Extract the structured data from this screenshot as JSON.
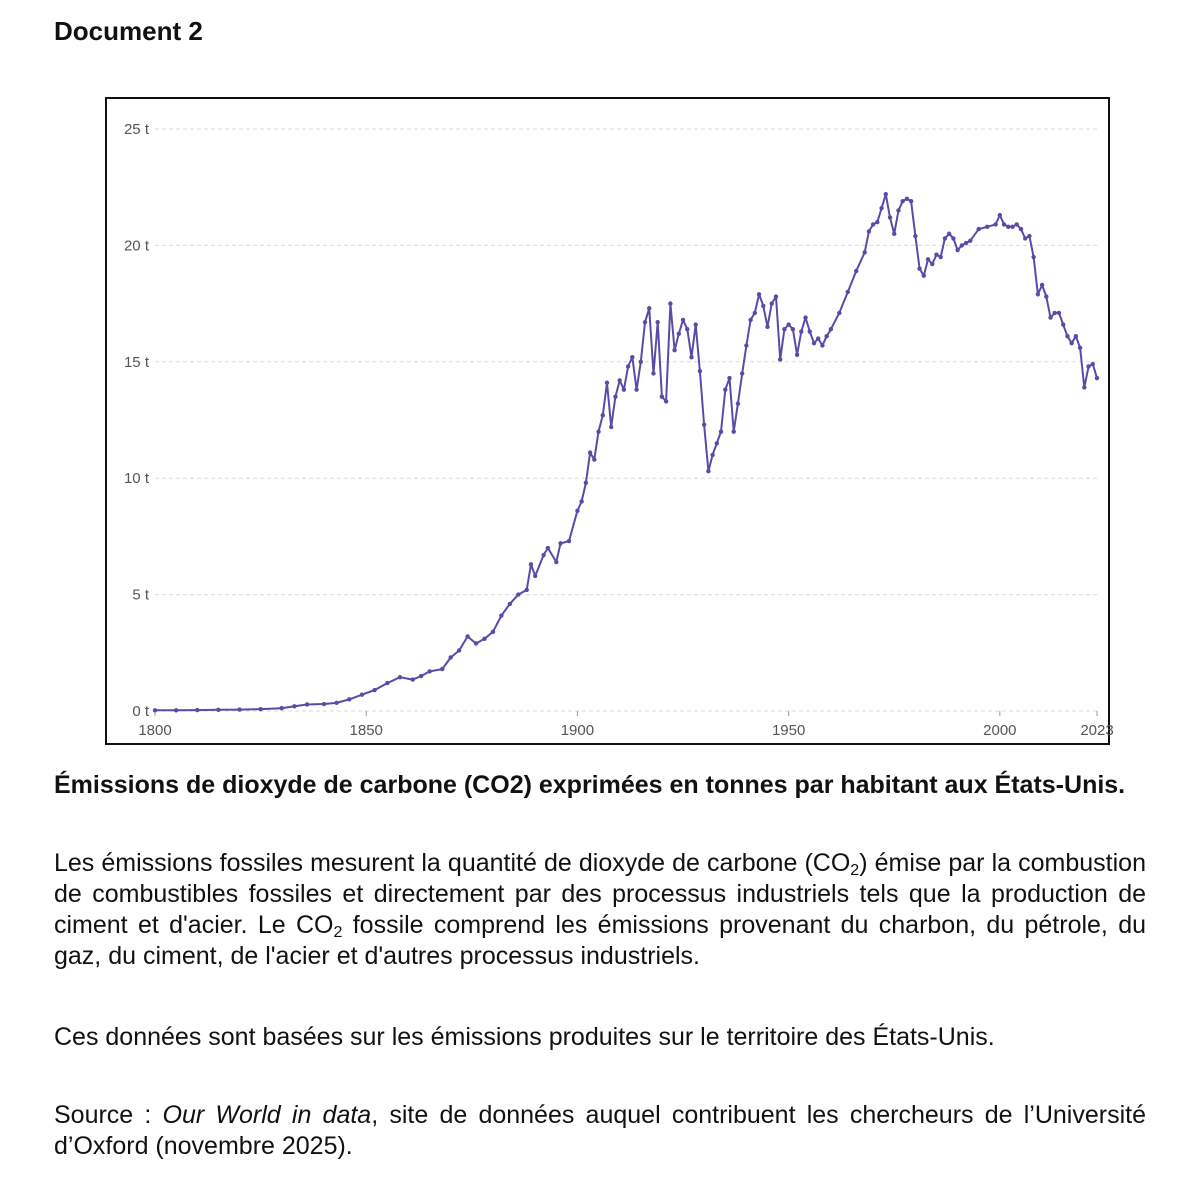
{
  "document": {
    "title": "Document 2"
  },
  "caption": {
    "text_before": "Émissions de dioxyde de carbone (CO",
    "subscript": "2",
    "text_after": ") exprimées en tonnes par habitant aux États-Unis."
  },
  "description": {
    "p1_part1": "Les émissions fossiles mesurent la quantité de dioxyde de carbone (CO",
    "p1_sub1": "2",
    "p1_part2": ") émise par la combustion de combustibles fossiles et directement par des processus industriels tels que la production de ciment et d'acier. Le CO",
    "p1_sub2": "2",
    "p1_part3": " fossile comprend les émissions provenant du charbon, du pétrole, du gaz, du ciment, de l'acier et d'autres processus industriels.",
    "p2": "Ces données sont basées sur les émissions produites sur le territoire des États-Unis."
  },
  "source": {
    "prefix": "Source : ",
    "name": "Our World in data",
    "suffix": ", site de données auquel contribuent les chercheurs de l’Université d’Oxford (novembre 2025)."
  },
  "colors": {
    "series": "#5b4aa8",
    "grid": "#d9d9d9",
    "axis_text": "#555555"
  },
  "chart_data": {
    "type": "line",
    "title": "",
    "xlabel": "",
    "ylabel": "",
    "xlim": [
      1800,
      2023
    ],
    "ylim": [
      0,
      25
    ],
    "xticks": [
      1800,
      1850,
      1900,
      1950,
      2000,
      2023
    ],
    "xtick_labels": [
      "1800",
      "1850",
      "1900",
      "1950",
      "2000",
      "2023"
    ],
    "yticks": [
      0,
      5,
      10,
      15,
      20,
      25
    ],
    "ytick_labels": [
      "0 t",
      "5 t",
      "10 t",
      "15 t",
      "20 t",
      "25 t"
    ],
    "grid": "horizontal dashed",
    "legend": "none",
    "points": [
      [
        1800,
        0.03
      ],
      [
        1805,
        0.03
      ],
      [
        1810,
        0.04
      ],
      [
        1815,
        0.05
      ],
      [
        1820,
        0.06
      ],
      [
        1825,
        0.08
      ],
      [
        1830,
        0.12
      ],
      [
        1833,
        0.2
      ],
      [
        1836,
        0.28
      ],
      [
        1840,
        0.3
      ],
      [
        1843,
        0.35
      ],
      [
        1846,
        0.5
      ],
      [
        1849,
        0.7
      ],
      [
        1852,
        0.9
      ],
      [
        1855,
        1.2
      ],
      [
        1858,
        1.45
      ],
      [
        1861,
        1.35
      ],
      [
        1863,
        1.5
      ],
      [
        1865,
        1.7
      ],
      [
        1868,
        1.8
      ],
      [
        1870,
        2.3
      ],
      [
        1872,
        2.6
      ],
      [
        1874,
        3.2
      ],
      [
        1876,
        2.9
      ],
      [
        1878,
        3.1
      ],
      [
        1880,
        3.4
      ],
      [
        1882,
        4.1
      ],
      [
        1884,
        4.6
      ],
      [
        1886,
        5.0
      ],
      [
        1888,
        5.2
      ],
      [
        1889,
        6.3
      ],
      [
        1890,
        5.8
      ],
      [
        1892,
        6.7
      ],
      [
        1893,
        7.0
      ],
      [
        1895,
        6.4
      ],
      [
        1896,
        7.2
      ],
      [
        1898,
        7.3
      ],
      [
        1900,
        8.6
      ],
      [
        1901,
        9.0
      ],
      [
        1902,
        9.8
      ],
      [
        1903,
        11.1
      ],
      [
        1904,
        10.8
      ],
      [
        1905,
        12.0
      ],
      [
        1906,
        12.7
      ],
      [
        1907,
        14.1
      ],
      [
        1908,
        12.2
      ],
      [
        1909,
        13.5
      ],
      [
        1910,
        14.2
      ],
      [
        1911,
        13.8
      ],
      [
        1912,
        14.8
      ],
      [
        1913,
        15.2
      ],
      [
        1914,
        13.8
      ],
      [
        1915,
        15.0
      ],
      [
        1916,
        16.7
      ],
      [
        1917,
        17.3
      ],
      [
        1918,
        14.5
      ],
      [
        1919,
        16.7
      ],
      [
        1920,
        13.5
      ],
      [
        1921,
        13.3
      ],
      [
        1922,
        17.5
      ],
      [
        1923,
        15.5
      ],
      [
        1924,
        16.2
      ],
      [
        1925,
        16.8
      ],
      [
        1926,
        16.4
      ],
      [
        1927,
        15.2
      ],
      [
        1928,
        16.6
      ],
      [
        1929,
        14.6
      ],
      [
        1930,
        12.3
      ],
      [
        1931,
        10.3
      ],
      [
        1932,
        11.0
      ],
      [
        1933,
        11.5
      ],
      [
        1934,
        12.0
      ],
      [
        1935,
        13.8
      ],
      [
        1936,
        14.3
      ],
      [
        1937,
        12.0
      ],
      [
        1938,
        13.2
      ],
      [
        1939,
        14.5
      ],
      [
        1940,
        15.7
      ],
      [
        1941,
        16.8
      ],
      [
        1942,
        17.1
      ],
      [
        1943,
        17.9
      ],
      [
        1944,
        17.4
      ],
      [
        1945,
        16.5
      ],
      [
        1946,
        17.5
      ],
      [
        1947,
        17.8
      ],
      [
        1948,
        15.1
      ],
      [
        1949,
        16.4
      ],
      [
        1950,
        16.6
      ],
      [
        1951,
        16.4
      ],
      [
        1952,
        15.3
      ],
      [
        1953,
        16.3
      ],
      [
        1954,
        16.9
      ],
      [
        1955,
        16.3
      ],
      [
        1956,
        15.8
      ],
      [
        1957,
        16.0
      ],
      [
        1958,
        15.7
      ],
      [
        1959,
        16.1
      ],
      [
        1960,
        16.4
      ],
      [
        1962,
        17.1
      ],
      [
        1964,
        18.0
      ],
      [
        1966,
        18.9
      ],
      [
        1968,
        19.7
      ],
      [
        1969,
        20.6
      ],
      [
        1970,
        20.9
      ],
      [
        1971,
        21.0
      ],
      [
        1972,
        21.6
      ],
      [
        1973,
        22.2
      ],
      [
        1974,
        21.2
      ],
      [
        1975,
        20.5
      ],
      [
        1976,
        21.5
      ],
      [
        1977,
        21.9
      ],
      [
        1978,
        22.0
      ],
      [
        1979,
        21.9
      ],
      [
        1980,
        20.4
      ],
      [
        1981,
        19.0
      ],
      [
        1982,
        18.7
      ],
      [
        1983,
        19.4
      ],
      [
        1984,
        19.2
      ],
      [
        1985,
        19.6
      ],
      [
        1986,
        19.5
      ],
      [
        1987,
        20.3
      ],
      [
        1988,
        20.5
      ],
      [
        1989,
        20.3
      ],
      [
        1990,
        19.8
      ],
      [
        1991,
        20.0
      ],
      [
        1992,
        20.1
      ],
      [
        1993,
        20.2
      ],
      [
        1995,
        20.7
      ],
      [
        1997,
        20.8
      ],
      [
        1999,
        20.9
      ],
      [
        2000,
        21.3
      ],
      [
        2001,
        20.9
      ],
      [
        2002,
        20.8
      ],
      [
        2003,
        20.8
      ],
      [
        2004,
        20.9
      ],
      [
        2005,
        20.7
      ],
      [
        2006,
        20.3
      ],
      [
        2007,
        20.4
      ],
      [
        2008,
        19.5
      ],
      [
        2009,
        17.9
      ],
      [
        2010,
        18.3
      ],
      [
        2011,
        17.8
      ],
      [
        2012,
        16.9
      ],
      [
        2013,
        17.1
      ],
      [
        2014,
        17.1
      ],
      [
        2015,
        16.6
      ],
      [
        2016,
        16.1
      ],
      [
        2017,
        15.8
      ],
      [
        2018,
        16.1
      ],
      [
        2019,
        15.6
      ],
      [
        2020,
        13.9
      ],
      [
        2021,
        14.8
      ],
      [
        2022,
        14.9
      ],
      [
        2023,
        14.3
      ]
    ]
  }
}
